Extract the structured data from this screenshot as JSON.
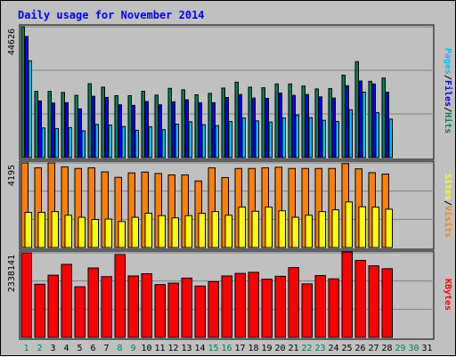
{
  "chart_data": {
    "type": "bar",
    "title": "Daily usage for November 2014",
    "categories": [
      "1",
      "2",
      "3",
      "4",
      "5",
      "6",
      "7",
      "8",
      "9",
      "10",
      "11",
      "12",
      "13",
      "14",
      "15",
      "16",
      "17",
      "18",
      "19",
      "20",
      "21",
      "22",
      "23",
      "24",
      "25",
      "26",
      "27",
      "28",
      "29",
      "30",
      "31"
    ],
    "weekend_days": [
      "1",
      "2",
      "8",
      "9",
      "15",
      "16",
      "22",
      "23",
      "29",
      "30"
    ],
    "panels": [
      {
        "name": "top",
        "max_label": "44626",
        "ylim": [
          0,
          44626
        ],
        "legend": [
          "Pages",
          "/",
          "Files",
          "/",
          "Hits"
        ],
        "series": [
          {
            "name": "Hits",
            "color": "#00805c",
            "values": [
              44626,
              22600,
              22600,
              22200,
              21200,
              25200,
              24000,
              21100,
              21100,
              22600,
              21300,
              23600,
              23100,
              21400,
              21900,
              23700,
              25700,
              24000,
              23800,
              25100,
              25100,
              24400,
              23400,
              23500,
              28100,
              32700,
              26000,
              27100,
              null,
              null,
              null
            ]
          },
          {
            "name": "Files",
            "color": "#0000ff",
            "values": [
              41300,
              19300,
              18600,
              18700,
              16600,
              20900,
              20500,
              18000,
              17800,
              19100,
              18000,
              19000,
              19700,
              18700,
              18700,
              20500,
              21500,
              20300,
              20200,
              22000,
              21200,
              21500,
              20700,
              20300,
              24500,
              26100,
              25100,
              22300,
              null,
              null,
              null
            ]
          },
          {
            "name": "Pages",
            "color": "#00c0ff",
            "values": [
              33000,
              10100,
              9900,
              10200,
              9100,
              11300,
              11100,
              10600,
              9300,
              10500,
              9500,
              11400,
              12200,
              11200,
              10900,
              12300,
              13500,
              12500,
              12100,
              13500,
              14500,
              13600,
              12700,
              12300,
              16300,
              22300,
              15300,
              13100,
              null,
              null,
              null
            ]
          }
        ]
      },
      {
        "name": "middle",
        "max_label": "4195",
        "ylim": [
          0,
          4195
        ],
        "legend": [
          "Sites",
          "/",
          "Visits"
        ],
        "series": [
          {
            "name": "Visits",
            "color": "#ff8000",
            "values": [
              4195,
              3950,
              4195,
              4000,
              3920,
              3950,
              3750,
              3480,
              3700,
              3740,
              3670,
              3600,
              3600,
              3300,
              3950,
              3470,
              3920,
              3920,
              3950,
              3980,
              3920,
              3920,
              3920,
              3920,
              4160,
              3900,
              3710,
              3640,
              null,
              null,
              null
            ]
          },
          {
            "name": "Sites",
            "color": "#ffff00",
            "values": [
              1740,
              1740,
              1780,
              1600,
              1500,
              1390,
              1410,
              1290,
              1500,
              1700,
              1580,
              1470,
              1580,
              1700,
              1780,
              1600,
              2000,
              1800,
              2000,
              1820,
              1500,
              1600,
              1780,
              1870,
              2260,
              2020,
              2000,
              1900,
              null,
              null,
              null
            ]
          }
        ]
      },
      {
        "name": "bottom",
        "max_label": "2338141",
        "ylim": [
          0,
          2338141
        ],
        "legend": [
          "KBytes"
        ],
        "series": [
          {
            "name": "KBytes",
            "color": "#ff0000",
            "values": [
              2338141,
              1470000,
              1720000,
              2020000,
              1400000,
              1920000,
              1680000,
              2290000,
              1700000,
              1760000,
              1460000,
              1500000,
              1640000,
              1420000,
              1540000,
              1700000,
              1770000,
              1800000,
              1610000,
              1690000,
              1930000,
              1480000,
              1710000,
              1620000,
              2360000,
              2130000,
              1980000,
              1900000,
              null,
              null,
              null
            ]
          }
        ]
      }
    ],
    "colors": {
      "background": "#c0c0c0",
      "plot_bg": "#c0c0c0",
      "title": "#0000ff",
      "weekday_label": "#000000",
      "weekend_label": "#00805c",
      "grid": "#808080"
    }
  }
}
